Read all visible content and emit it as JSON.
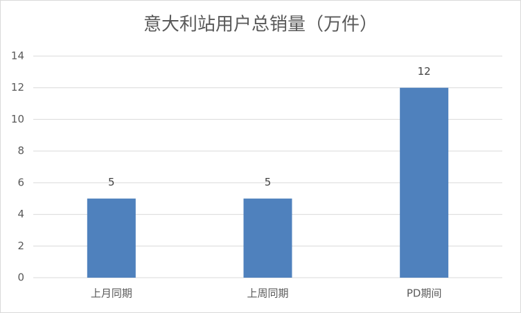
{
  "chart_data": {
    "type": "bar",
    "title": "意大利站用户总销量（万件）",
    "categories": [
      "上月同期",
      "上周同期",
      "PD期间"
    ],
    "values": [
      5,
      5,
      12
    ],
    "color": "#4f81bd",
    "ylim": [
      0,
      14
    ],
    "yticks": [
      0,
      2,
      4,
      6,
      8,
      10,
      12,
      14
    ],
    "grid": true
  }
}
